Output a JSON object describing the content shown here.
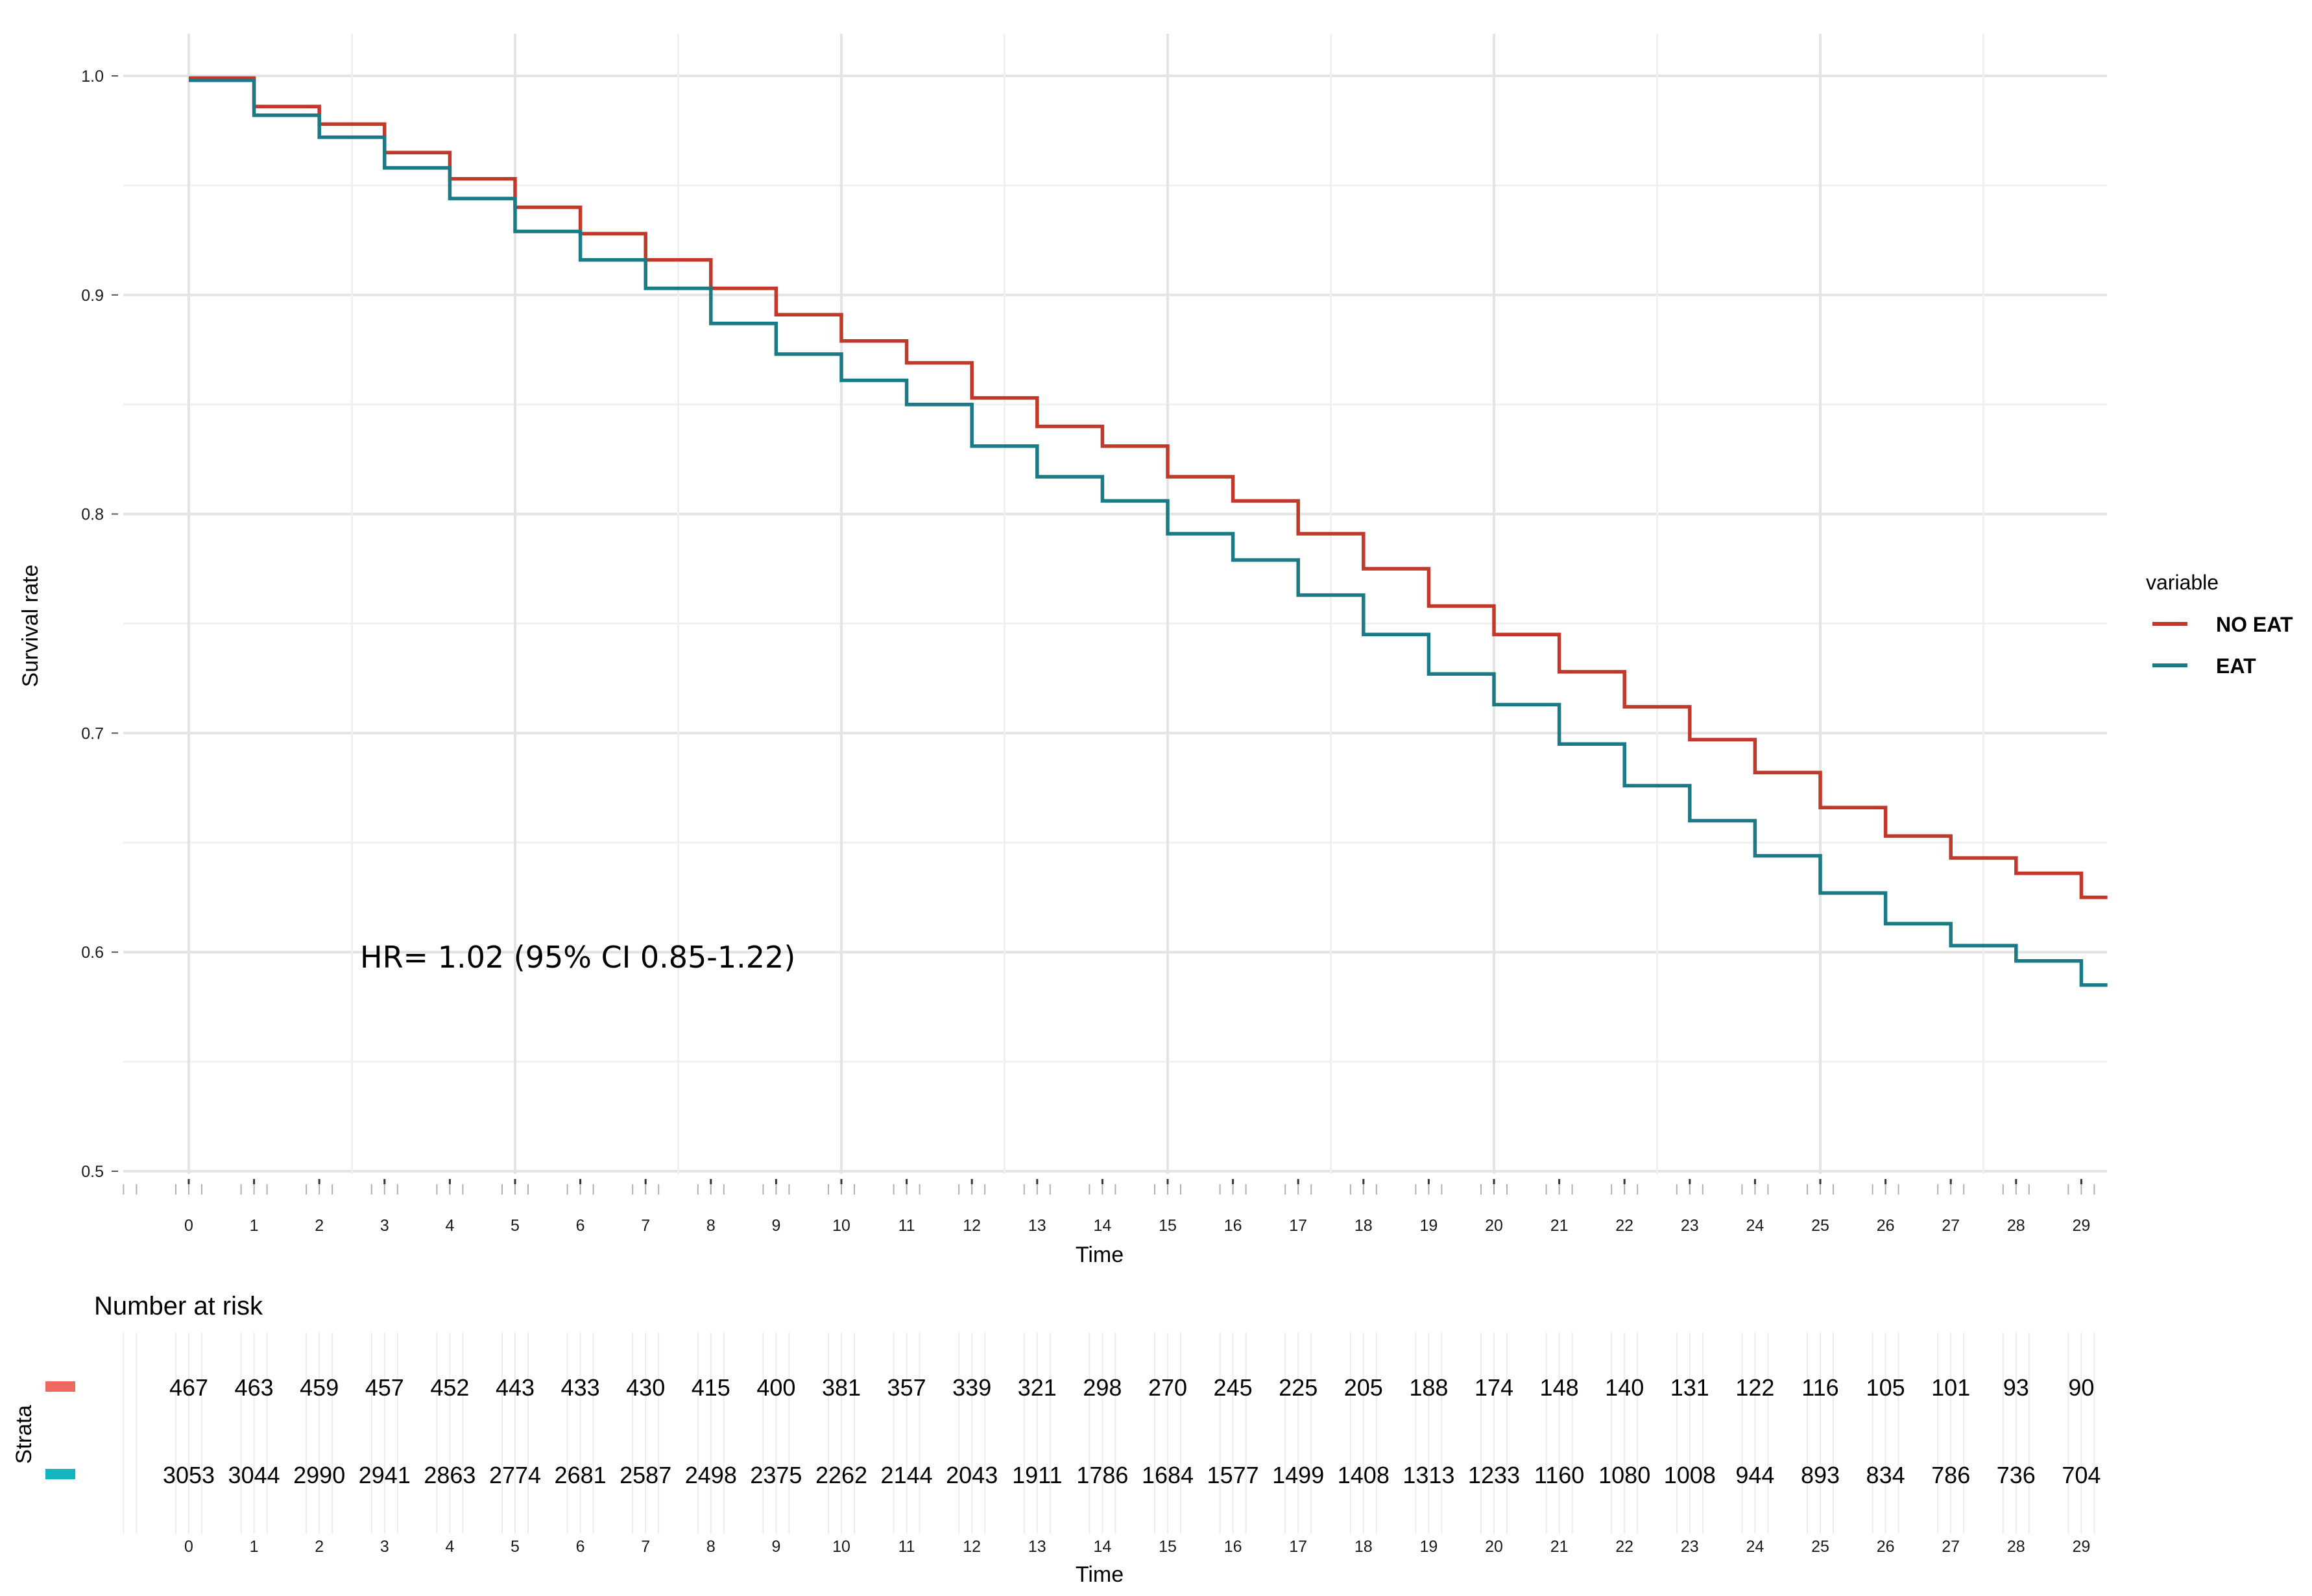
{
  "chart_data": {
    "type": "line",
    "subtype": "kaplan-meier step",
    "title": "",
    "xlabel": "Time",
    "ylabel": "Survival rate",
    "xlim": [
      0,
      29
    ],
    "ylim": [
      0.5,
      1.0
    ],
    "x_ticks": [
      0,
      1,
      2,
      3,
      4,
      5,
      6,
      7,
      8,
      9,
      10,
      11,
      12,
      13,
      14,
      15,
      16,
      17,
      18,
      19,
      20,
      21,
      22,
      23,
      24,
      25,
      26,
      27,
      28,
      29
    ],
    "y_ticks": [
      "0.5",
      "0.6",
      "0.7",
      "0.8",
      "0.9",
      "1.0"
    ],
    "legend_title": "variable",
    "legend_position": "right",
    "annotation": "HR= 1.02 (95% CI 0.85-1.22)",
    "series": [
      {
        "name": "NO EAT",
        "color": "#c0392b",
        "x": [
          0,
          1,
          2,
          3,
          4,
          5,
          6,
          7,
          8,
          9,
          10,
          11,
          12,
          13,
          14,
          15,
          16,
          17,
          18,
          19,
          20,
          21,
          22,
          23,
          24,
          25,
          26,
          27,
          28,
          29,
          29.4
        ],
        "values": [
          0.999,
          0.986,
          0.978,
          0.965,
          0.953,
          0.94,
          0.928,
          0.916,
          0.903,
          0.891,
          0.879,
          0.869,
          0.853,
          0.84,
          0.831,
          0.817,
          0.806,
          0.791,
          0.775,
          0.758,
          0.745,
          0.728,
          0.712,
          0.697,
          0.682,
          0.666,
          0.653,
          0.643,
          0.636,
          0.625,
          0.625
        ]
      },
      {
        "name": "EAT",
        "color": "#1a7a86",
        "x": [
          0,
          1,
          2,
          3,
          4,
          5,
          6,
          7,
          8,
          9,
          10,
          11,
          12,
          13,
          14,
          15,
          16,
          17,
          18,
          19,
          20,
          21,
          22,
          23,
          24,
          25,
          26,
          27,
          28,
          29,
          29.4
        ],
        "values": [
          0.998,
          0.982,
          0.972,
          0.958,
          0.944,
          0.929,
          0.916,
          0.903,
          0.887,
          0.873,
          0.861,
          0.85,
          0.831,
          0.817,
          0.806,
          0.791,
          0.779,
          0.763,
          0.745,
          0.727,
          0.713,
          0.695,
          0.676,
          0.66,
          0.644,
          0.627,
          0.613,
          0.603,
          0.596,
          0.585,
          0.585
        ]
      }
    ],
    "risk_table": {
      "title": "Number at risk",
      "ylabel": "Strata",
      "xlabel": "Time",
      "strata": [
        {
          "name": "NO EAT",
          "color": "#f0675d",
          "counts": [
            "467",
            "463",
            "459",
            "457",
            "452",
            "443",
            "433",
            "430",
            "415",
            "400",
            "381",
            "357",
            "339",
            "321",
            "298",
            "270",
            "245",
            "225",
            "205",
            "188",
            "174",
            "148",
            "140",
            "131",
            "122",
            "116",
            "105",
            "101",
            "93",
            "90"
          ]
        },
        {
          "name": "EAT",
          "color": "#13b5be",
          "counts": [
            "3053",
            "3044",
            "2990",
            "2941",
            "2863",
            "2774",
            "2681",
            "2587",
            "2498",
            "2375",
            "2262",
            "2144",
            "2043",
            "1911",
            "1786",
            "1684",
            "1577",
            "1499",
            "1408",
            "1313",
            "1233",
            "1160",
            "1080",
            "1008",
            "944",
            "893",
            "834",
            "786",
            "736",
            "704"
          ]
        }
      ]
    }
  }
}
